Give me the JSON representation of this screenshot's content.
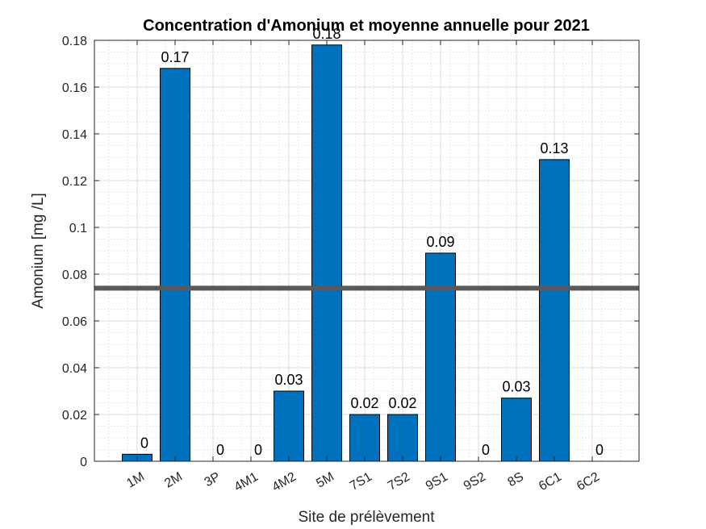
{
  "chart_data": {
    "type": "bar",
    "title": "Concentration d'Amonium et moyenne annuelle pour 2021",
    "xlabel": "Site de prélèvement",
    "ylabel": "Amonium [mg /L]",
    "categories": [
      "1M",
      "2M",
      "3P",
      "4M1",
      "4M2",
      "5M",
      "7S1",
      "7S2",
      "9S1",
      "9S2",
      "8S",
      "6C1",
      "6C2"
    ],
    "values": [
      0.003,
      0.168,
      0,
      0,
      0.03,
      0.178,
      0.02,
      0.02,
      0.089,
      0,
      0.027,
      0.129,
      0
    ],
    "data_labels": [
      "0",
      "0.17",
      "0",
      "0",
      "0.03",
      "0.18",
      "0.02",
      "0.02",
      "0.09",
      "0",
      "0.03",
      "0.13",
      "0"
    ],
    "ylim": [
      0,
      0.18
    ],
    "yticks": [
      0,
      0.02,
      0.04,
      0.06,
      0.08,
      0.1,
      0.12,
      0.14,
      0.16,
      0.18
    ],
    "ytick_labels": [
      "0",
      "0.02",
      "0.04",
      "0.06",
      "0.08",
      "0.1",
      "0.12",
      "0.14",
      "0.16",
      "0.18"
    ],
    "mean_line": 0.074,
    "grid": true,
    "minor_grid": true,
    "colors": {
      "bar": "#0072BD",
      "mean_line": "#595959",
      "axis": "#262626"
    }
  }
}
